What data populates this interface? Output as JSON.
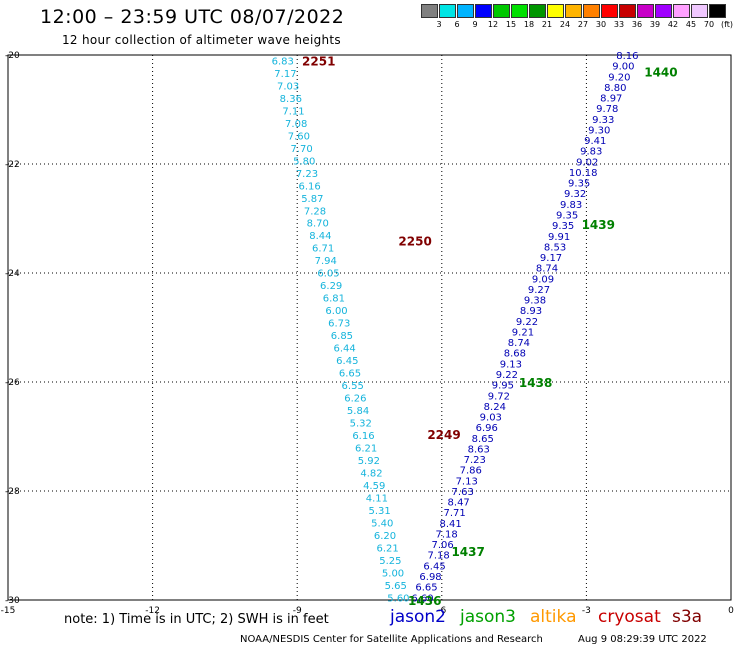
{
  "header": {
    "title": "12:00 – 23:59 UTC 08/07/2022",
    "subtitle": "12 hour collection of altimeter wave heights"
  },
  "colorbar": {
    "colors": [
      "#808080",
      "#00e5e5",
      "#00b4ff",
      "#0000ff",
      "#00c800",
      "#00e000",
      "#009600",
      "#ffff00",
      "#ffb400",
      "#ff8000",
      "#ff0000",
      "#c80000",
      "#c800c8",
      "#a000ff",
      "#ffa0ff",
      "#f0c8ff",
      "#000000"
    ],
    "labels": [
      "3",
      "6",
      "9",
      "12",
      "15",
      "18",
      "21",
      "24",
      "27",
      "30",
      "33",
      "36",
      "39",
      "42",
      "45",
      "70",
      "(ft)"
    ]
  },
  "chart_data": {
    "type": "scatter",
    "title": "12:00 – 23:59 UTC 08/07/2022",
    "xlim": [
      -15,
      0
    ],
    "ylim": [
      -30,
      -20
    ],
    "xticks": [
      "-15",
      "-12",
      "-9",
      "-6",
      "-3",
      "0"
    ],
    "yticks": [
      "-20",
      "-22",
      "-24",
      "-26",
      "-28",
      "-30"
    ],
    "grid": true,
    "track_colors": {
      "jason2": "#0000c8",
      "jason3": "#008000",
      "cryosat": "#00b0e8",
      "s3a": "#00b0e8"
    },
    "track_a": {
      "color": "#15b4dc",
      "values": [
        "6.83",
        "7.17",
        "7.03",
        "8.36",
        "7.11",
        "7.08",
        "7.60",
        "7.70",
        "5.80",
        "7.23",
        "6.16",
        "5.87",
        "7.28",
        "8.70",
        "8.44",
        "6.71",
        "7.94",
        "6.05",
        "6.29",
        "6.81",
        "6.00",
        "6.73",
        "6.85",
        "6.44",
        "6.45",
        "6.65",
        "6.55",
        "6.26",
        "5.84",
        "5.32",
        "6.16",
        "6.21",
        "5.92",
        "4.82",
        "4.59",
        "4.11",
        "5.31",
        "5.40",
        "6.20",
        "6.21",
        "5.25",
        "5.00",
        "5.65",
        "5.60"
      ],
      "lat_start": -20.1,
      "lat_end": -29.95,
      "lon_start": -9.3,
      "lon_end": -6.9
    },
    "track_b": {
      "color": "#0000b4",
      "values": [
        "8.16",
        "9.00",
        "9.20",
        "8.80",
        "8.97",
        "9.78",
        "9.33",
        "9.30",
        "9.41",
        "9.83",
        "9.02",
        "10.18",
        "9.35",
        "9.32",
        "9.83",
        "9.35",
        "9.35",
        "9.91",
        "8.53",
        "9.17",
        "8.74",
        "9.09",
        "9.27",
        "9.38",
        "8.93",
        "9.22",
        "9.21",
        "8.74",
        "8.68",
        "9.13",
        "9.22",
        "9.95",
        "9.72",
        "8.24",
        "9.03",
        "6.96",
        "8.65",
        "8.63",
        "7.23",
        "7.86",
        "7.13",
        "7.63",
        "8.47",
        "7.71",
        "8.41",
        "7.18",
        "7.06",
        "7.18",
        "6.45",
        "6.98",
        "6.65",
        "6.60"
      ],
      "lat_start": -20.0,
      "lat_end": -29.95,
      "lon_start": -2.15,
      "lon_end": -6.4
    },
    "pass_labels": [
      {
        "text": "2251",
        "lon": -8.9,
        "lat": -20.1,
        "color": "#800000"
      },
      {
        "text": "2250",
        "lon": -6.9,
        "lat": -23.4,
        "color": "#800000"
      },
      {
        "text": "2249",
        "lon": -6.3,
        "lat": -26.95,
        "color": "#800000"
      },
      {
        "text": "1440",
        "lon": -1.8,
        "lat": -20.3,
        "color": "#008000"
      },
      {
        "text": "1439",
        "lon": -3.1,
        "lat": -23.1,
        "color": "#008000"
      },
      {
        "text": "1438",
        "lon": -4.4,
        "lat": -26.0,
        "color": "#008000"
      },
      {
        "text": "1437",
        "lon": -5.8,
        "lat": -29.1,
        "color": "#008000"
      },
      {
        "text": "1436",
        "lon": -6.7,
        "lat": -30.0,
        "color": "#008000"
      }
    ]
  },
  "legend": {
    "note": "note:  1) Time is in UTC;  2) SWH is in feet",
    "satellites": [
      {
        "name": "jason2",
        "color": "#0000c8"
      },
      {
        "name": "jason3",
        "color": "#00a000"
      },
      {
        "name": "altika",
        "color": "#ff9900"
      },
      {
        "name": "cryosat",
        "color": "#c80000"
      },
      {
        "name": "s3a",
        "color": "#800000"
      }
    ]
  },
  "footer": {
    "credit": "NOAA/NESDIS Center for Satellite Applications and Research",
    "timestamp": "Aug  9 08:29:39 UTC 2022"
  }
}
